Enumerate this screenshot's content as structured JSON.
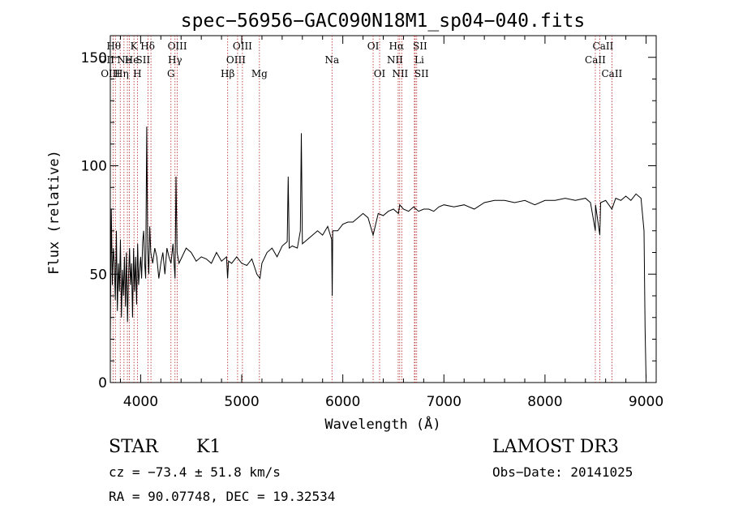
{
  "chart_data": {
    "type": "line",
    "title": "spec−56956−GAC090N18M1_sp04−040.fits",
    "xlabel": "Wavelength (Å)",
    "ylabel": "Flux (relative)",
    "xlim": [
      3700,
      9100
    ],
    "ylim": [
      0,
      160
    ],
    "xticks": [
      4000,
      5000,
      6000,
      7000,
      8000,
      9000
    ],
    "yticks": [
      0,
      50,
      100,
      150
    ],
    "series": [
      {
        "name": "spectrum",
        "x": [
          3700,
          3710,
          3720,
          3730,
          3740,
          3750,
          3760,
          3770,
          3780,
          3790,
          3800,
          3810,
          3820,
          3830,
          3840,
          3850,
          3860,
          3870,
          3880,
          3890,
          3900,
          3910,
          3920,
          3930,
          3940,
          3950,
          3960,
          3970,
          3980,
          3990,
          4000,
          4010,
          4020,
          4030,
          4040,
          4050,
          4060,
          4070,
          4080,
          4090,
          4100,
          4120,
          4140,
          4160,
          4180,
          4200,
          4220,
          4240,
          4260,
          4280,
          4300,
          4320,
          4340,
          4350,
          4360,
          4380,
          4400,
          4450,
          4500,
          4550,
          4600,
          4650,
          4700,
          4750,
          4800,
          4850,
          4860,
          4870,
          4900,
          4950,
          5000,
          5050,
          5100,
          5150,
          5180,
          5200,
          5250,
          5300,
          5350,
          5400,
          5450,
          5460,
          5470,
          5500,
          5550,
          5580,
          5590,
          5600,
          5650,
          5700,
          5750,
          5800,
          5850,
          5890,
          5895,
          5900,
          5950,
          6000,
          6050,
          6100,
          6150,
          6200,
          6250,
          6300,
          6350,
          6400,
          6450,
          6500,
          6550,
          6563,
          6600,
          6650,
          6700,
          6750,
          6800,
          6850,
          6900,
          6950,
          7000,
          7100,
          7200,
          7300,
          7400,
          7500,
          7600,
          7700,
          7800,
          7900,
          8000,
          8100,
          8200,
          8300,
          8400,
          8450,
          8498,
          8500,
          8542,
          8550,
          8600,
          8662,
          8700,
          8750,
          8800,
          8850,
          8900,
          8950,
          8980,
          8990,
          9000
        ],
        "values": [
          20,
          80,
          45,
          62,
          55,
          38,
          70,
          33,
          55,
          42,
          66,
          30,
          52,
          40,
          58,
          35,
          60,
          28,
          48,
          62,
          45,
          55,
          30,
          62,
          42,
          58,
          36,
          64,
          45,
          52,
          58,
          48,
          65,
          70,
          55,
          48,
          118,
          62,
          50,
          72,
          60,
          55,
          62,
          58,
          48,
          55,
          60,
          50,
          62,
          58,
          55,
          64,
          48,
          95,
          60,
          55,
          57,
          62,
          60,
          56,
          58,
          57,
          55,
          60,
          56,
          58,
          48,
          56,
          55,
          58,
          55,
          54,
          57,
          50,
          48,
          55,
          60,
          62,
          58,
          63,
          65,
          95,
          62,
          63,
          62,
          70,
          115,
          64,
          66,
          68,
          70,
          68,
          72,
          66,
          40,
          70,
          70,
          73,
          74,
          74,
          76,
          78,
          76,
          68,
          78,
          77,
          79,
          80,
          78,
          82,
          80,
          79,
          81,
          79,
          80,
          80,
          79,
          81,
          82,
          81,
          82,
          80,
          83,
          84,
          84,
          83,
          84,
          82,
          84,
          84,
          85,
          84,
          85,
          83,
          70,
          82,
          68,
          83,
          84,
          80,
          85,
          84,
          86,
          84,
          87,
          85,
          70,
          25,
          2
        ]
      }
    ],
    "annotations": {
      "lines": [
        {
          "wl": 3727,
          "label": "OII",
          "row": 1,
          "xoff": -8
        },
        {
          "wl": 3750,
          "label": "OIII",
          "row": 2,
          "xoff": -6
        },
        {
          "wl": 3798,
          "label": "Hθ",
          "row": 0,
          "xoff": -8
        },
        {
          "wl": 3835,
          "label": "Hη",
          "row": 2,
          "xoff": -3
        },
        {
          "wl": 3869,
          "label": "Ne",
          "row": 1,
          "xoff": -4
        },
        {
          "wl": 3889,
          "label": "He",
          "row": 1,
          "xoff": 3
        },
        {
          "wl": 3934,
          "label": "K",
          "row": 0,
          "xoff": 0
        },
        {
          "wl": 3968,
          "label": "H",
          "row": 2,
          "xoff": 0
        },
        {
          "wl": 4072,
          "label": "SII",
          "row": 1,
          "xoff": -6
        },
        {
          "wl": 4102,
          "label": "Hδ",
          "row": 0,
          "xoff": -4
        },
        {
          "wl": 4300,
          "label": "G",
          "row": 2,
          "xoff": 0
        },
        {
          "wl": 4340,
          "label": "Hγ",
          "row": 1,
          "xoff": 0
        },
        {
          "wl": 4363,
          "label": "OIII",
          "row": 0,
          "xoff": 0
        },
        {
          "wl": 4861,
          "label": "Hβ",
          "row": 2,
          "xoff": 0
        },
        {
          "wl": 4959,
          "label": "OIII",
          "row": 1,
          "xoff": -2
        },
        {
          "wl": 5007,
          "label": "OIII",
          "row": 0,
          "xoff": 0
        },
        {
          "wl": 5175,
          "label": "Mg",
          "row": 2,
          "xoff": 0
        },
        {
          "wl": 5893,
          "label": "Na",
          "row": 1,
          "xoff": 0
        },
        {
          "wl": 6300,
          "label": "OI",
          "row": 0,
          "xoff": 0
        },
        {
          "wl": 6364,
          "label": "OI",
          "row": 2,
          "xoff": 0
        },
        {
          "wl": 6548,
          "label": "NII",
          "row": 1,
          "xoff": -4
        },
        {
          "wl": 6563,
          "label": "Hα",
          "row": 0,
          "xoff": -4
        },
        {
          "wl": 6583,
          "label": "NII",
          "row": 2,
          "xoff": -2
        },
        {
          "wl": 6708,
          "label": "Li",
          "row": 1,
          "xoff": 6
        },
        {
          "wl": 6716,
          "label": "SII",
          "row": 0,
          "xoff": 6
        },
        {
          "wl": 6731,
          "label": "SII",
          "row": 2,
          "xoff": 6
        },
        {
          "wl": 8498,
          "label": "CaII",
          "row": 1,
          "xoff": 0
        },
        {
          "wl": 8542,
          "label": "CaII",
          "row": 0,
          "xoff": 4
        },
        {
          "wl": 8662,
          "label": "CaII",
          "row": 2,
          "xoff": 0
        }
      ]
    }
  },
  "info": {
    "class": "STAR",
    "subclass": "K1",
    "survey": "LAMOST DR3",
    "cz": "cz = −73.4 ± 51.8 km/s",
    "obs_date": "Obs−Date: 20141025",
    "radec": "RA =  90.07748, DEC =  19.32534"
  }
}
